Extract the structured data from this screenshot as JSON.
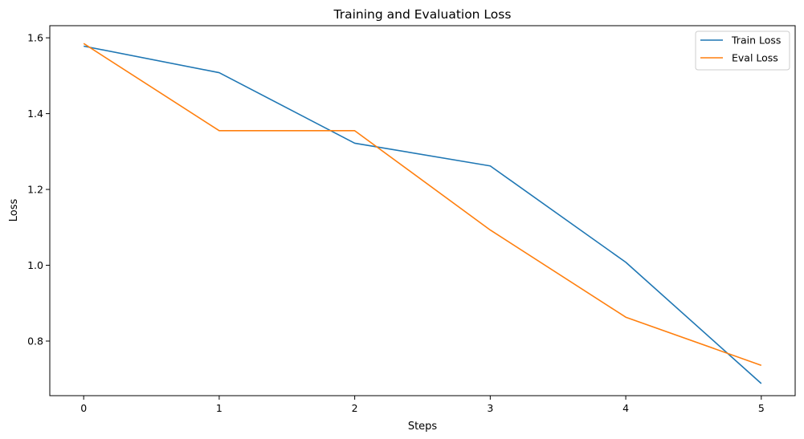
{
  "chart_data": {
    "type": "line",
    "title": "Training and Evaluation Loss",
    "xlabel": "Steps",
    "ylabel": "Loss",
    "x": [
      0,
      1,
      2,
      3,
      4,
      5
    ],
    "xticks": [
      "0",
      "1",
      "2",
      "3",
      "4",
      "5"
    ],
    "yticks": [
      "0.8",
      "1.0",
      "1.2",
      "1.4",
      "1.6"
    ],
    "ytick_values": [
      0.8,
      1.0,
      1.2,
      1.4,
      1.6
    ],
    "xlim": [
      -0.25,
      5.25
    ],
    "ylim": [
      0.656,
      1.632
    ],
    "grid": false,
    "legend_position": "top-right",
    "series": [
      {
        "name": "Train Loss",
        "color": "#1f77b4",
        "values": [
          1.578,
          1.508,
          1.322,
          1.262,
          1.008,
          0.688
        ]
      },
      {
        "name": "Eval Loss",
        "color": "#ff7f0e",
        "values": [
          1.585,
          1.355,
          1.355,
          1.093,
          0.863,
          0.736
        ]
      }
    ]
  }
}
